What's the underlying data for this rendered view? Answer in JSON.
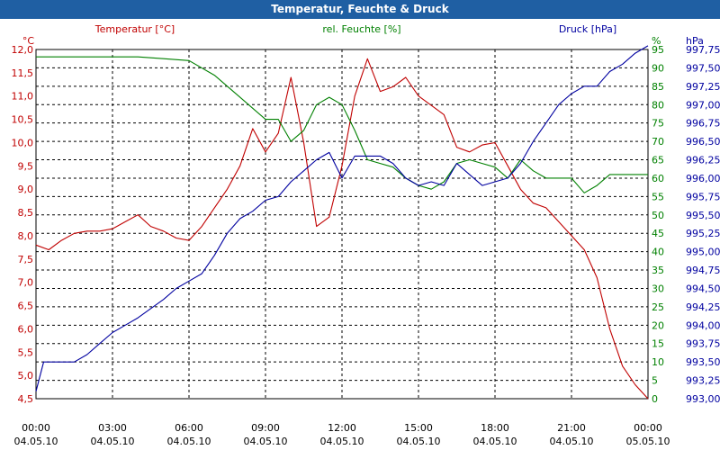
{
  "chart_data": {
    "type": "line",
    "title": "Temperatur, Feuchte & Druck",
    "grid": true,
    "colors": {
      "temperature": "#c00000",
      "humidity": "#008000",
      "pressure": "#0000a0",
      "titlebar": "#1f5fa3"
    },
    "x_labels": [
      [
        "00:00",
        "04.05.10"
      ],
      [
        "03:00",
        "04.05.10"
      ],
      [
        "06:00",
        "04.05.10"
      ],
      [
        "09:00",
        "04.05.10"
      ],
      [
        "12:00",
        "04.05.10"
      ],
      [
        "15:00",
        "04.05.10"
      ],
      [
        "18:00",
        "04.05.10"
      ],
      [
        "21:00",
        "04.05.10"
      ],
      [
        "00:00",
        "05.05.10"
      ]
    ],
    "x_range_hours": [
      0,
      24
    ],
    "axes": {
      "temperature": {
        "label": "Temperatur [°C]",
        "unit": "°C",
        "range": [
          4.5,
          12.0
        ],
        "ticks": [
          "4,5",
          "5,0",
          "5,5",
          "6,0",
          "6,5",
          "7,0",
          "7,5",
          "8,0",
          "8,5",
          "9,0",
          "9,5",
          "10,0",
          "10,5",
          "11,0",
          "11,5",
          "12,0"
        ]
      },
      "humidity": {
        "label": "rel. Feuchte [%]",
        "unit": "%",
        "range": [
          0,
          95
        ],
        "ticks": [
          "0",
          "5",
          "10",
          "15",
          "20",
          "25",
          "30",
          "35",
          "40",
          "45",
          "50",
          "55",
          "60",
          "65",
          "70",
          "75",
          "80",
          "85",
          "90",
          "95"
        ]
      },
      "pressure": {
        "label": "Druck [hPa]",
        "unit": "hPa",
        "range": [
          993.0,
          997.75
        ],
        "ticks": [
          "993,00",
          "993,25",
          "993,50",
          "993,75",
          "994,00",
          "994,25",
          "994,50",
          "994,75",
          "995,00",
          "995,25",
          "995,50",
          "995,75",
          "996,00",
          "996,25",
          "996,50",
          "996,75",
          "997,00",
          "997,25",
          "997,50",
          "997,75"
        ]
      }
    },
    "series": [
      {
        "name": "Temperatur [°C]",
        "axis": "temperature",
        "points": [
          [
            0,
            7.8
          ],
          [
            0.5,
            7.7
          ],
          [
            1,
            7.9
          ],
          [
            1.5,
            8.05
          ],
          [
            2,
            8.1
          ],
          [
            2.5,
            8.1
          ],
          [
            3,
            8.15
          ],
          [
            3.5,
            8.3
          ],
          [
            4,
            8.45
          ],
          [
            4.5,
            8.2
          ],
          [
            5,
            8.1
          ],
          [
            5.5,
            7.95
          ],
          [
            6,
            7.9
          ],
          [
            6.5,
            8.2
          ],
          [
            7,
            8.6
          ],
          [
            7.5,
            9.0
          ],
          [
            8,
            9.5
          ],
          [
            8.5,
            10.3
          ],
          [
            9,
            9.8
          ],
          [
            9.5,
            10.2
          ],
          [
            10,
            11.4
          ],
          [
            10.5,
            10.0
          ],
          [
            11,
            8.2
          ],
          [
            11.5,
            8.4
          ],
          [
            12,
            9.5
          ],
          [
            12.5,
            11.0
          ],
          [
            13,
            11.8
          ],
          [
            13.5,
            11.1
          ],
          [
            14,
            11.2
          ],
          [
            14.5,
            11.4
          ],
          [
            15,
            11.0
          ],
          [
            15.5,
            10.8
          ],
          [
            16,
            10.6
          ],
          [
            16.5,
            9.9
          ],
          [
            17,
            9.8
          ],
          [
            17.5,
            9.95
          ],
          [
            18,
            10.0
          ],
          [
            18.5,
            9.5
          ],
          [
            19,
            9.0
          ],
          [
            19.5,
            8.7
          ],
          [
            20,
            8.6
          ],
          [
            20.5,
            8.3
          ],
          [
            21,
            8.0
          ],
          [
            21.5,
            7.7
          ],
          [
            22,
            7.1
          ],
          [
            22.5,
            6.0
          ],
          [
            23,
            5.2
          ],
          [
            23.5,
            4.8
          ],
          [
            24,
            4.5
          ]
        ]
      },
      {
        "name": "rel. Feuchte [%]",
        "axis": "humidity",
        "points": [
          [
            0,
            93
          ],
          [
            1,
            93
          ],
          [
            2,
            93
          ],
          [
            3,
            93
          ],
          [
            4,
            93
          ],
          [
            5,
            92.5
          ],
          [
            6,
            92
          ],
          [
            7,
            88
          ],
          [
            8,
            82
          ],
          [
            8.5,
            79
          ],
          [
            9,
            76
          ],
          [
            9.5,
            76
          ],
          [
            10,
            70
          ],
          [
            10.5,
            73
          ],
          [
            11,
            80
          ],
          [
            11.5,
            82
          ],
          [
            12,
            80
          ],
          [
            12.5,
            73
          ],
          [
            13,
            65
          ],
          [
            13.5,
            64
          ],
          [
            14,
            63
          ],
          [
            14.5,
            60
          ],
          [
            15,
            58
          ],
          [
            15.5,
            57
          ],
          [
            16,
            59
          ],
          [
            16.5,
            64
          ],
          [
            17,
            65
          ],
          [
            17.5,
            64
          ],
          [
            18,
            63
          ],
          [
            18.5,
            60
          ],
          [
            19,
            65
          ],
          [
            19.5,
            62
          ],
          [
            20,
            60
          ],
          [
            21,
            60
          ],
          [
            21.5,
            56
          ],
          [
            22,
            58
          ],
          [
            22.5,
            61
          ],
          [
            23,
            61
          ],
          [
            24,
            61
          ]
        ]
      },
      {
        "name": "Druck [hPa]",
        "axis": "pressure",
        "points": [
          [
            0,
            993.1
          ],
          [
            0.3,
            993.5
          ],
          [
            1,
            993.5
          ],
          [
            1.5,
            993.5
          ],
          [
            2,
            993.6
          ],
          [
            2.5,
            993.75
          ],
          [
            3,
            993.9
          ],
          [
            3.5,
            994.0
          ],
          [
            4,
            994.1
          ],
          [
            5,
            994.35
          ],
          [
            5.5,
            994.5
          ],
          [
            6,
            994.6
          ],
          [
            6.5,
            994.7
          ],
          [
            7,
            994.95
          ],
          [
            7.5,
            995.25
          ],
          [
            8,
            995.45
          ],
          [
            8.5,
            995.55
          ],
          [
            9,
            995.7
          ],
          [
            9.5,
            995.75
          ],
          [
            10,
            995.95
          ],
          [
            10.5,
            996.1
          ],
          [
            11,
            996.25
          ],
          [
            11.5,
            996.35
          ],
          [
            12,
            996.0
          ],
          [
            12.5,
            996.3
          ],
          [
            13,
            996.3
          ],
          [
            13.5,
            996.3
          ],
          [
            14,
            996.2
          ],
          [
            14.5,
            996.0
          ],
          [
            15,
            995.9
          ],
          [
            15.5,
            995.95
          ],
          [
            16,
            995.9
          ],
          [
            16.5,
            996.2
          ],
          [
            17,
            996.05
          ],
          [
            17.5,
            995.9
          ],
          [
            18,
            995.95
          ],
          [
            18.5,
            996.0
          ],
          [
            19,
            996.2
          ],
          [
            19.5,
            996.5
          ],
          [
            20,
            996.75
          ],
          [
            20.5,
            997.0
          ],
          [
            21,
            997.15
          ],
          [
            21.5,
            997.25
          ],
          [
            22,
            997.25
          ],
          [
            22.5,
            997.45
          ],
          [
            23,
            997.55
          ],
          [
            23.5,
            997.7
          ],
          [
            24,
            997.8
          ]
        ]
      }
    ]
  }
}
